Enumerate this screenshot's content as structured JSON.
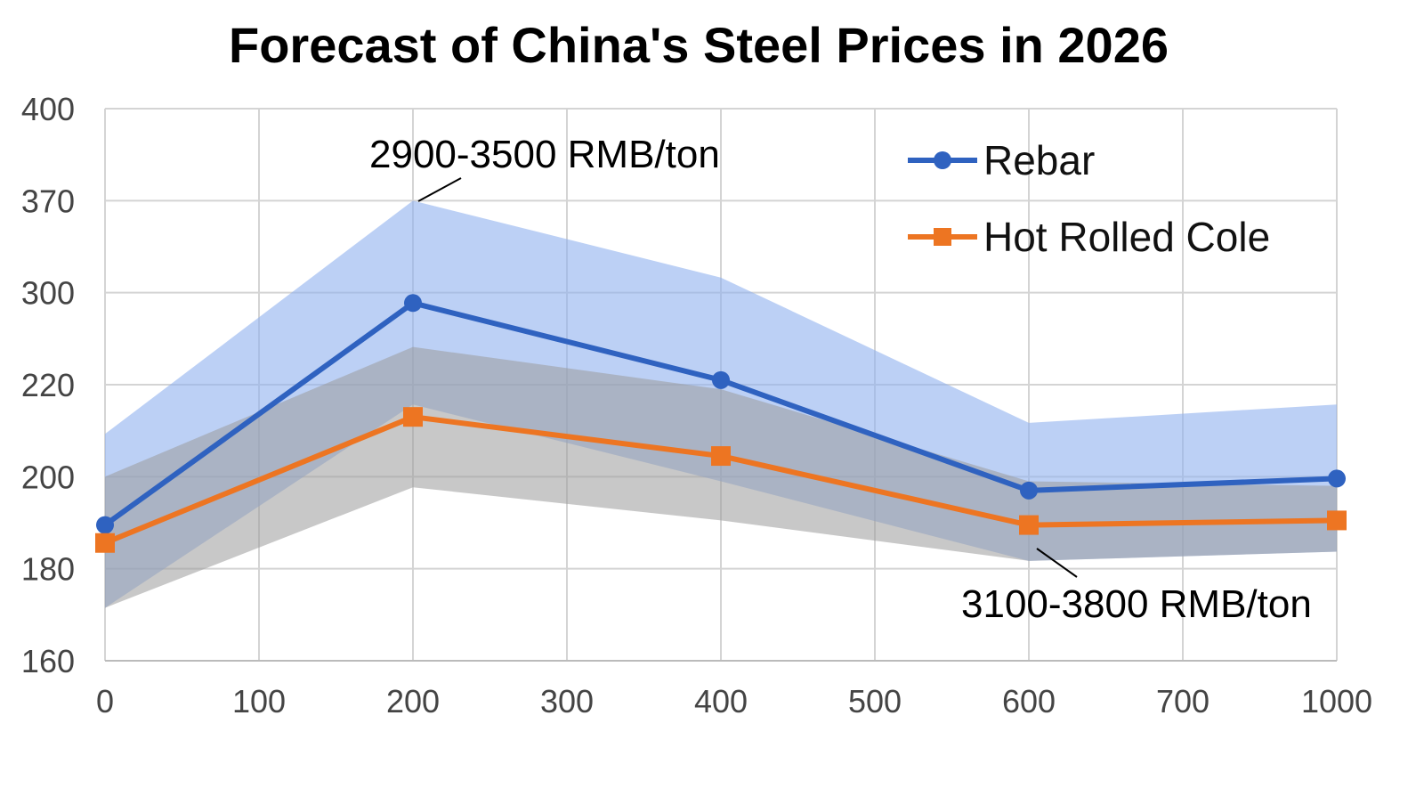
{
  "chart_data": {
    "type": "line",
    "title": "Forecast of China's Steel Prices in 2026",
    "xlabel": "",
    "ylabel": "",
    "x_tick_labels": [
      "0",
      "100",
      "200",
      "300",
      "400",
      "500",
      "600",
      "700",
      "1000"
    ],
    "y_tick_labels": [
      "160",
      "180",
      "200",
      "220",
      "300",
      "370",
      "400"
    ],
    "grid": true,
    "legend_position": "top-right",
    "series": [
      {
        "name": "Rebar",
        "color": "#2f62c0",
        "marker": "circle",
        "x": [
          "0",
          "200",
          "400",
          "600",
          "1000"
        ],
        "values": [
          189.5,
          291,
          224,
          197,
          199.6
        ],
        "band": {
          "color": "#8fb0ee",
          "upper": [
            209.3,
            370,
            311.5,
            211.7,
            215.7
          ],
          "lower": [
            171.5,
            215.7,
            199,
            181.7,
            183.7
          ]
        }
      },
      {
        "name": "Hot Rolled Cole",
        "color": "#ed7522",
        "marker": "square",
        "x": [
          "0",
          "200",
          "400",
          "600",
          "1000"
        ],
        "values": [
          185.6,
          213,
          204.5,
          189.5,
          190.5
        ],
        "band": {
          "color": "#9a9a9a",
          "upper": [
            200,
            252.8,
            219,
            199,
            198
          ],
          "lower": [
            171.5,
            197.7,
            190.5,
            181.7,
            183.7
          ]
        }
      }
    ],
    "annotations": [
      {
        "text": "2900-3500 RMB/ton",
        "x": "200",
        "y": 370
      },
      {
        "text": "3100-3800 RMB/ton",
        "x": "600",
        "y": 181.7
      }
    ]
  }
}
